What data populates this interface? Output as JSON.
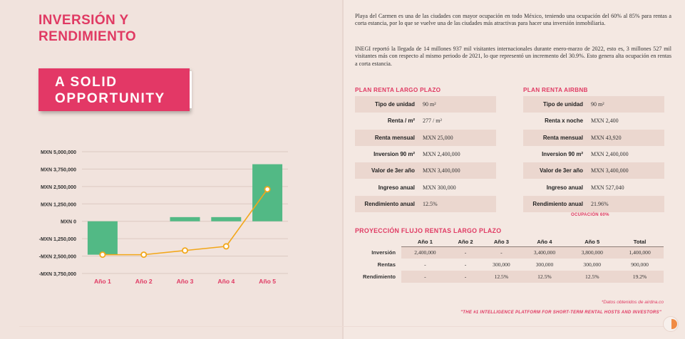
{
  "left": {
    "title": "INVERSIÓN Y\nRENDIMIENTO",
    "badge": "A SOLID\nOPPORTUNITY"
  },
  "chart_data": {
    "type": "bar",
    "categories": [
      "Año 1",
      "Año 2",
      "Año 3",
      "Año 4",
      "Año 5"
    ],
    "bar_values": [
      -2400000,
      0,
      300000,
      300000,
      4100000
    ],
    "line_values": [
      -2400000,
      -2400000,
      -2100000,
      -1800000,
      2300000
    ],
    "yticks": [
      5000000,
      3750000,
      2500000,
      1250000,
      0,
      -1250000,
      -2500000,
      -3750000
    ],
    "ytick_labels": [
      "MXN 5,000,000",
      "MXN 3,750,000",
      "MXN 2,500,000",
      "MXN 1,250,000",
      "MXN 0",
      "-MXN 1,250,000",
      "-MXN 2,500,000",
      "-MXN 3,750,000"
    ],
    "ylim": [
      -3750000,
      5000000
    ],
    "bar_color": "#52b985",
    "line_color": "#f2a71b",
    "grid": true
  },
  "right": {
    "paragraph1": "Playa del Carmen es una de las ciudades con mayor ocupación en todo México, teniendo una ocupación del 60% al 85% para rentas a corta estancia, por lo que se vuelve una de las ciudades más atractivas para hacer una inversión inmobiliaria.",
    "paragraph2": "INEGI reportó la llegada de 14 millones 937 mil visitantes internacionales durante enero-marzo de 2022, esto es, 3 millones 527 mil visitantes más con respecto al mismo periodo de 2021, lo que representó un incremento del 30.9%. Esto genera alta ocupación en rentas a corta estancia.",
    "largo": {
      "title": "PLAN RENTA LARGO PLAZO",
      "rows": [
        {
          "k": "Tipo de unidad",
          "v": "90 m²"
        },
        {
          "k": "Renta / m²",
          "v": "277 / m²"
        },
        {
          "k": "Renta mensual",
          "v": "MXN 25,000"
        },
        {
          "k": "Inversion 90 m²",
          "v": "MXN 2,400,000"
        },
        {
          "k": "Valor de 3er año",
          "v": "MXN 3,400,000"
        },
        {
          "k": "Ingreso anual",
          "v": "MXN 300,000"
        },
        {
          "k": "Rendimiento anual",
          "v": "12.5%"
        }
      ]
    },
    "airbnb": {
      "title": "PLAN RENTA AIRBNB",
      "rows": [
        {
          "k": "Tipo de unidad",
          "v": "90 m²"
        },
        {
          "k": "Renta x noche",
          "v": "MXN 2,400"
        },
        {
          "k": "Renta mensual",
          "v": "MXN 43,920"
        },
        {
          "k": "Inversion 90 m²",
          "v": "MXN 2,400,000"
        },
        {
          "k": "Valor de 3er año",
          "v": "MXN 3,400,000"
        },
        {
          "k": "Ingreso anual",
          "v": "MXN 527,040"
        },
        {
          "k": "Rendimiento anual",
          "v": "21.96%"
        }
      ],
      "note": "OCUPACIÓN 60%"
    },
    "flow": {
      "title": "PROYECCIÓN FLUJO RENTAS LARGO PLAZO",
      "headers": [
        "",
        "Año 1",
        "Año 2",
        "Año 3",
        "Año 4",
        "Año 5",
        "Total"
      ],
      "rows": [
        {
          "label": "Inversión",
          "cells": [
            "2,400,000",
            "-",
            "-",
            "3,400,000",
            "3,800,000",
            "1,400,000"
          ]
        },
        {
          "label": "Rentas",
          "cells": [
            "-",
            "-",
            "300,000",
            "300,000",
            "300,000",
            "900,000"
          ]
        },
        {
          "label": "Rendimiento",
          "cells": [
            "-",
            "-",
            "12.5%",
            "12.5%",
            "12.5%",
            "19.2%"
          ]
        }
      ]
    },
    "source": "*Datos obtenidos de airdna.co",
    "tagline": "\"THE #1 INTELLIGENCE PLATFORM FOR SHORT-TERM RENTAL HOSTS AND INVESTORS\""
  },
  "colors": {
    "accent": "#e33866",
    "bar": "#52b985",
    "line": "#f2a71b"
  }
}
